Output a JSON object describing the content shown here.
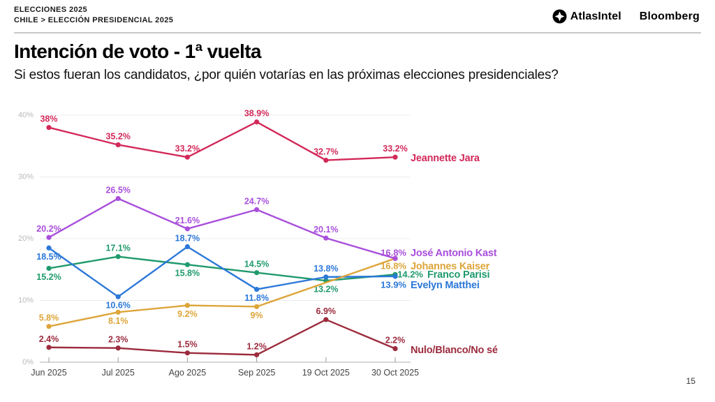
{
  "header": {
    "kicker": "ELECCIONES 2025",
    "breadcrumb": "CHILE > ELECCIÓN PRESIDENCIAL 2025",
    "brand_atlas": "AtlasIntel",
    "brand_bloomberg": "Bloomberg"
  },
  "title": "Intención de voto - 1ª vuelta",
  "subtitle": "Si estos fueran los candidatos, ¿por quién votarías en las próximas elecciones presidenciales?",
  "footer": {
    "page_number": "15"
  },
  "chart_data": {
    "type": "line",
    "title": "Intención de voto - 1ª vuelta",
    "x_categories": [
      "Jun 2025",
      "Jul 2025",
      "Ago 2025",
      "Sep 2025",
      "19 Oct 2025",
      "30 Oct 2025"
    ],
    "y_ticks": [
      "0%",
      "10%",
      "20%",
      "30%",
      "40%"
    ],
    "ylim": [
      0,
      40
    ],
    "grid": true,
    "unit": "%",
    "legend_position": "right-of-last-point",
    "grid_color": "#ececec",
    "axis_color": "#c9c9c9",
    "tick_color": "#999999",
    "y_label_color": "#b9b9b9",
    "x_label_color": "#444444",
    "series": [
      {
        "name": "Jeannette Jara",
        "color": "#d3295a",
        "values": [
          38,
          35.2,
          33.2,
          38.9,
          32.7,
          33.2
        ]
      },
      {
        "name": "José Antonio Kast",
        "color": "#a94fdb",
        "values": [
          20.2,
          26.5,
          21.6,
          24.7,
          20.1,
          16.8
        ]
      },
      {
        "name": "Johannes Kaiser",
        "color": "#dda53a",
        "values": [
          5.8,
          8.1,
          9.2,
          9,
          null,
          16.8
        ]
      },
      {
        "name": "Franco Parisi",
        "color": "#1f9a6c",
        "values": [
          15.2,
          17.1,
          15.8,
          14.5,
          13.2,
          14.2
        ]
      },
      {
        "name": "Evelyn Matthei",
        "color": "#2b78d8",
        "values": [
          18.5,
          10.6,
          18.7,
          11.8,
          13.8,
          13.9
        ]
      },
      {
        "name": "Nulo/Blanco/No sé",
        "color": "#9c2b3d",
        "values": [
          2.4,
          2.3,
          1.5,
          1.2,
          6.9,
          2.2
        ]
      }
    ]
  }
}
